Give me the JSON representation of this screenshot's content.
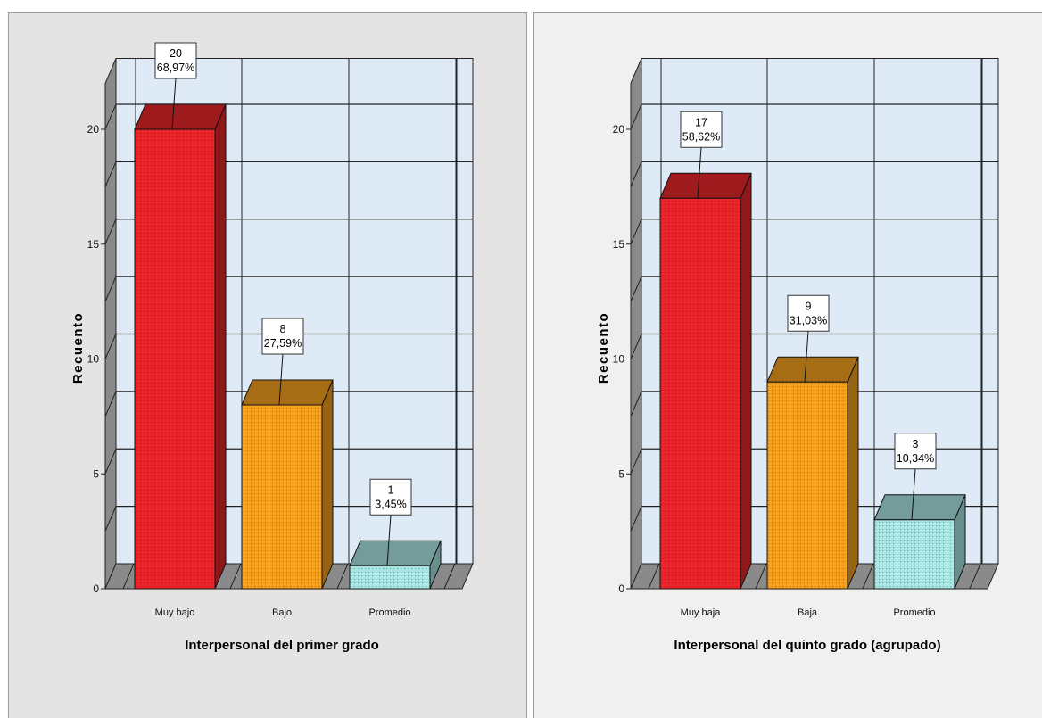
{
  "chart_data": [
    {
      "type": "bar",
      "categories": [
        "Muy bajo",
        "Bajo",
        "Promedio"
      ],
      "values": [
        20,
        8,
        1
      ],
      "percents": [
        "68,97%",
        "27,59%",
        "3,45%"
      ],
      "colors": [
        "#e8262b",
        "#f5a01e",
        "#a9e6e3"
      ],
      "ylabel": "Recuento",
      "xlabel": "Interpersonal del primer grado",
      "yticks": [
        "0",
        "5",
        "10",
        "15",
        "20"
      ],
      "ylim": [
        0,
        22
      ],
      "grid": true
    },
    {
      "type": "bar",
      "categories": [
        "Muy baja",
        "Baja",
        "Promedio"
      ],
      "values": [
        17,
        9,
        3
      ],
      "percents": [
        "58,62%",
        "31,03%",
        "10,34%"
      ],
      "colors": [
        "#e8262b",
        "#f5a01e",
        "#a9e6e3"
      ],
      "ylabel": "Recuento",
      "xlabel": "Interpersonal del quinto grado (agrupado)",
      "yticks": [
        "0",
        "5",
        "10",
        "15",
        "20"
      ],
      "ylim": [
        0,
        22
      ],
      "grid": true
    }
  ]
}
